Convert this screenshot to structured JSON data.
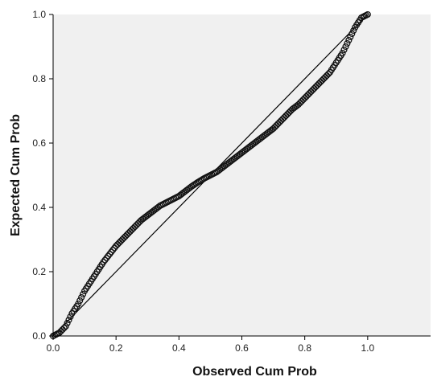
{
  "chart_data": {
    "type": "scatter",
    "title": "",
    "xlabel": "Observed Cum Prob",
    "ylabel": "Expected Cum Prob",
    "xlim": [
      0,
      1.2
    ],
    "ylim": [
      0,
      1.0
    ],
    "x_ticks": [
      "0.0",
      "0.2",
      "0.4",
      "0.6",
      "0.8",
      "1.0"
    ],
    "y_ticks": [
      "0.0",
      "0.2",
      "0.4",
      "0.6",
      "0.8",
      "1.0"
    ],
    "grid": false,
    "plot_background": "#f0f0f0",
    "marker": "open-circle",
    "reference_line": {
      "x": [
        0,
        1
      ],
      "y": [
        0,
        1
      ]
    },
    "series": [
      {
        "x": [
          0.0,
          0.02,
          0.04,
          0.06,
          0.08,
          0.1,
          0.12,
          0.14,
          0.16,
          0.18,
          0.2,
          0.22,
          0.24,
          0.26,
          0.28,
          0.3,
          0.32,
          0.34,
          0.36,
          0.38,
          0.4,
          0.42,
          0.44,
          0.46,
          0.48,
          0.5,
          0.52,
          0.54,
          0.56,
          0.58,
          0.6,
          0.62,
          0.64,
          0.66,
          0.68,
          0.7,
          0.72,
          0.74,
          0.76,
          0.78,
          0.8,
          0.82,
          0.84,
          0.86,
          0.88,
          0.9,
          0.92,
          0.94,
          0.96,
          0.98,
          1.0
        ],
        "y": [
          0.0,
          0.01,
          0.03,
          0.07,
          0.1,
          0.14,
          0.17,
          0.2,
          0.23,
          0.255,
          0.28,
          0.3,
          0.32,
          0.34,
          0.36,
          0.375,
          0.39,
          0.405,
          0.415,
          0.425,
          0.435,
          0.45,
          0.465,
          0.478,
          0.49,
          0.5,
          0.51,
          0.525,
          0.54,
          0.555,
          0.57,
          0.585,
          0.6,
          0.615,
          0.63,
          0.645,
          0.665,
          0.685,
          0.705,
          0.72,
          0.74,
          0.76,
          0.78,
          0.8,
          0.82,
          0.85,
          0.88,
          0.92,
          0.96,
          0.99,
          1.0
        ]
      }
    ]
  }
}
